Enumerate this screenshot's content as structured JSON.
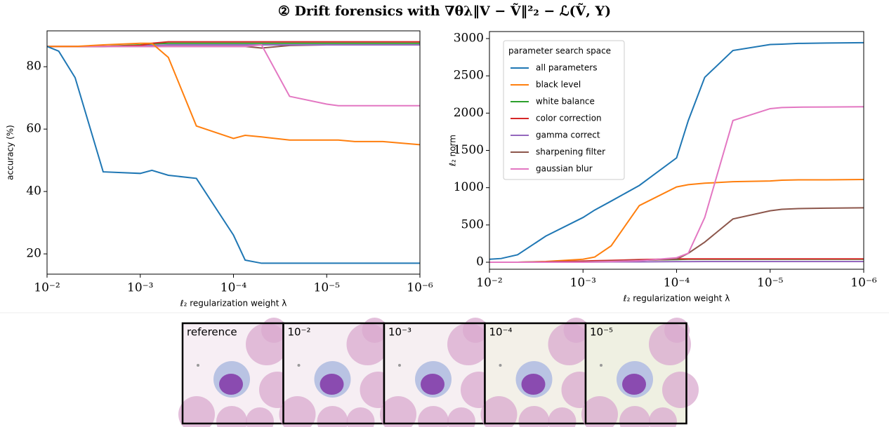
{
  "figure_title": "② Drift forensics with ∇θλ‖V − Ṽ‖²₂ − ℒ(Ṽ, Y)",
  "chart_data": [
    {
      "type": "line",
      "xlabel": "ℓ₂ regularization weight λ",
      "ylabel": "accuracy (%)",
      "xscale": "log",
      "xlim": [
        0.01,
        1e-06
      ],
      "ylim": [
        13.5,
        91.5
      ],
      "xticks": [
        {
          "value": 0.01,
          "label": "10⁻²"
        },
        {
          "value": 0.001,
          "label": "10⁻³"
        },
        {
          "value": 0.0001,
          "label": "10⁻⁴"
        },
        {
          "value": 1e-05,
          "label": "10⁻⁵"
        },
        {
          "value": 1e-06,
          "label": "10⁻⁶"
        }
      ],
      "yticks": [
        20,
        40,
        60,
        80
      ],
      "x": [
        0.01,
        0.0075,
        0.005,
        0.0025,
        0.001,
        0.00075,
        0.0005,
        0.00025,
        0.0001,
        7.5e-05,
        5e-05,
        2.5e-05,
        1e-05,
        7.5e-06,
        5e-06,
        2.5e-06,
        1e-06
      ],
      "series": [
        {
          "color": "#8c564b",
          "values": [
            86.5,
            86.5,
            86.5,
            86.5,
            86.5,
            86.5,
            86.5,
            86.5,
            86.5,
            86.5,
            86,
            86.8,
            87,
            87,
            87,
            87,
            87
          ]
        },
        {
          "color": "#9467bd",
          "values": [
            86.5,
            86.5,
            86.5,
            86.5,
            86.7,
            86.8,
            87,
            87,
            87,
            87,
            87,
            87,
            87,
            87,
            87,
            87,
            87
          ]
        },
        {
          "color": "#2ca02c",
          "values": [
            86.5,
            86.5,
            86.5,
            86.5,
            87,
            87.3,
            87.5,
            87.5,
            87.5,
            87.5,
            87.5,
            87.5,
            87.5,
            87.5,
            87.5,
            87.5,
            87.5
          ]
        },
        {
          "color": "#d62728",
          "values": [
            86.5,
            86.5,
            86.5,
            86.5,
            86.8,
            87.5,
            88,
            88,
            88,
            88,
            88,
            88,
            88,
            88,
            88,
            88,
            88
          ]
        },
        {
          "color": "#e377c2",
          "values": [
            86.5,
            86.5,
            86.5,
            86.5,
            86.5,
            86.5,
            86.5,
            86.5,
            86.5,
            86.5,
            87,
            70.5,
            68,
            67.5,
            67.5,
            67.5,
            67.5
          ]
        },
        {
          "color": "#ff7f0e",
          "values": [
            86.5,
            86.5,
            86.5,
            87,
            87.5,
            87.5,
            83,
            61,
            57,
            58,
            57.5,
            56.5,
            56.5,
            56.5,
            56,
            56,
            55
          ]
        },
        {
          "color": "#1f77b4",
          "values": [
            86.5,
            85,
            76.5,
            46.3,
            45.8,
            46.8,
            45.2,
            44.2,
            26,
            18,
            17,
            17,
            17,
            17,
            17,
            17,
            17
          ]
        }
      ]
    },
    {
      "type": "line",
      "xlabel": "ℓ₂ regularization weight λ",
      "ylabel": "ℓ₂ norm",
      "xscale": "log",
      "xlim": [
        0.01,
        1e-06
      ],
      "ylim": [
        -94,
        3094
      ],
      "xticks": [
        {
          "value": 0.01,
          "label": "10⁻²"
        },
        {
          "value": 0.001,
          "label": "10⁻³"
        },
        {
          "value": 0.0001,
          "label": "10⁻⁴"
        },
        {
          "value": 1e-05,
          "label": "10⁻⁵"
        },
        {
          "value": 1e-06,
          "label": "10⁻⁶"
        }
      ],
      "yticks": [
        0,
        500,
        1000,
        1500,
        2000,
        2500,
        3000
      ],
      "legend_title": "parameter search space",
      "legend": "upper left",
      "x": [
        0.01,
        0.0075,
        0.005,
        0.0025,
        0.001,
        0.00075,
        0.0005,
        0.00025,
        0.0001,
        7.5e-05,
        5e-05,
        2.5e-05,
        1e-05,
        7.5e-06,
        5e-06,
        2.5e-06,
        1e-06
      ],
      "series": [
        {
          "name": "all parameters",
          "color": "#1f77b4",
          "values": [
            40,
            50,
            100,
            350,
            600,
            700,
            820,
            1030,
            1400,
            1900,
            2480,
            2840,
            2920,
            2925,
            2935,
            2940,
            2945
          ]
        },
        {
          "name": "black level",
          "color": "#ff7f0e",
          "values": [
            0,
            0,
            0,
            10,
            40,
            70,
            220,
            760,
            1010,
            1040,
            1060,
            1080,
            1090,
            1100,
            1105,
            1105,
            1110
          ]
        },
        {
          "name": "white balance",
          "color": "#2ca02c",
          "values": [
            0,
            0,
            0,
            5,
            10,
            15,
            20,
            30,
            35,
            40,
            40,
            40,
            40,
            40,
            40,
            40,
            40
          ]
        },
        {
          "name": "color correction",
          "color": "#d62728",
          "values": [
            0,
            0,
            0,
            5,
            15,
            20,
            25,
            35,
            45,
            45,
            45,
            45,
            45,
            45,
            45,
            45,
            45
          ]
        },
        {
          "name": "gamma correct",
          "color": "#9467bd",
          "values": [
            0,
            0,
            0,
            0,
            2,
            3,
            5,
            5,
            8,
            8,
            10,
            10,
            10,
            10,
            10,
            10,
            10
          ]
        },
        {
          "name": "sharpening filter",
          "color": "#8c564b",
          "values": [
            0,
            0,
            0,
            0,
            5,
            10,
            15,
            25,
            40,
            120,
            270,
            580,
            690,
            710,
            720,
            725,
            730
          ]
        },
        {
          "name": "gaussian blur",
          "color": "#e377c2",
          "values": [
            0,
            0,
            0,
            0,
            0,
            5,
            10,
            20,
            60,
            120,
            600,
            1900,
            2060,
            2075,
            2080,
            2082,
            2085
          ]
        }
      ]
    }
  ],
  "image_strip": {
    "labels": [
      "reference",
      "10⁻²",
      "10⁻³",
      "10⁻⁴",
      "10⁻⁵"
    ]
  }
}
